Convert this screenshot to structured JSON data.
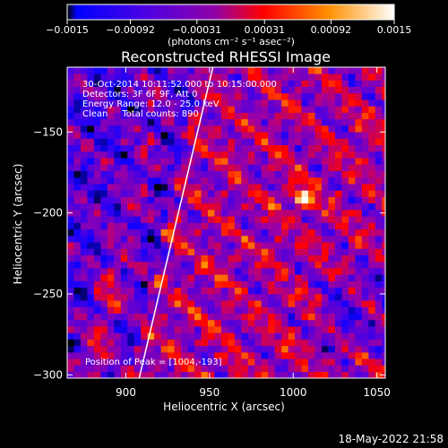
{
  "chart_data": {
    "type": "heatmap",
    "title": "Reconstructed RHESSI Image",
    "xlabel": "Heliocentric X (arcsec)",
    "ylabel": "Heliocentric Y (arcsec)",
    "xlim": [
      865,
      1055
    ],
    "ylim": [
      -302,
      -110
    ],
    "xticks": [
      900,
      950,
      1000,
      1050
    ],
    "yticks": [
      -150,
      -200,
      -250,
      -300
    ],
    "xtick_labels": [
      "900",
      "950",
      "1000",
      "1050"
    ],
    "ytick_labels": [
      "−150",
      "−200",
      "−250",
      "−300"
    ],
    "colorbar": {
      "range": [
        -0.0015,
        0.0015
      ],
      "ticks": [
        -0.0015,
        -0.00092,
        -0.00031,
        0.00031,
        0.00092,
        0.0015
      ],
      "tick_labels": [
        "−0.0015",
        "−0.00092",
        "−0.00031",
        "0.00031",
        "0.00092",
        "0.0015"
      ],
      "units_label": "(photons cm⁻² s⁻¹ asec⁻²)",
      "colormap": [
        "#000000",
        "#1000ff",
        "#5a00d8",
        "#a000a0",
        "#ff0000",
        "#ff9000",
        "#ffffff"
      ]
    },
    "info_lines": [
      "30-Oct-2014 10:11:52.000 to 10:15:00.000",
      "Detectors: 3F 6F 9F, Att 0",
      "Energy Range: 12.0 - 25.0 keV",
      "Clean     Total counts: 890"
    ],
    "peak_label": "Position of Peak = [1004,-193]",
    "peak": [
      1004,
      -193
    ],
    "limb_line": [
      [
        908,
        -302
      ],
      [
        952,
        -110
      ]
    ],
    "limb_color": "#ffffff",
    "grid": false
  },
  "footer": {
    "timestamp": "18-May-2022 21:58"
  }
}
